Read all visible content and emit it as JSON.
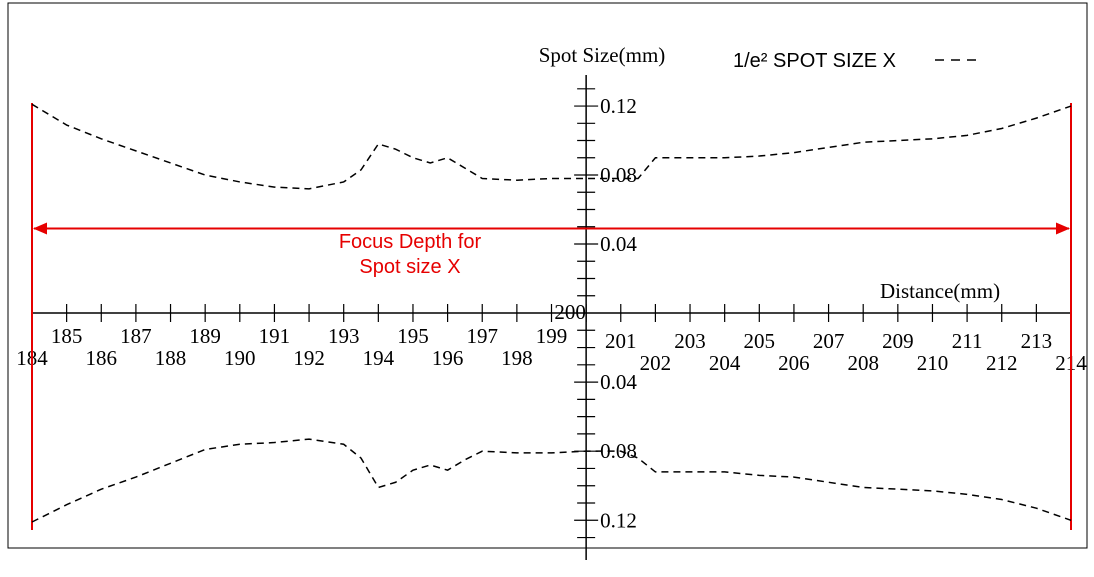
{
  "chart_data": {
    "type": "line",
    "x_label": "Distance(mm)",
    "y_label": "Spot Size(mm)",
    "xlim": [
      184,
      214
    ],
    "xticks": [
      184,
      185,
      186,
      187,
      188,
      189,
      190,
      191,
      192,
      193,
      194,
      195,
      196,
      197,
      198,
      199,
      200,
      201,
      202,
      203,
      204,
      205,
      206,
      207,
      208,
      209,
      210,
      211,
      212,
      213,
      214
    ],
    "ylim": [
      0,
      0.138
    ],
    "yticks": [
      0.04,
      0.08,
      0.12
    ],
    "y2lim": [
      0,
      0.143
    ],
    "y2ticks": [
      0.04,
      0.08,
      0.12
    ],
    "yminor_ticks": [
      0.01,
      0.02,
      0.03,
      0.05,
      0.06,
      0.07,
      0.09,
      0.1,
      0.11,
      0.13
    ],
    "x": [
      184,
      185,
      186,
      187,
      188,
      189,
      190,
      191,
      192,
      193,
      193.5,
      194,
      194.5,
      195,
      195.5,
      196,
      196.5,
      197,
      198,
      199,
      200,
      201,
      201.5,
      202,
      203,
      204,
      205,
      206,
      207,
      208,
      209,
      210,
      211,
      212,
      213,
      214
    ],
    "series": [
      {
        "name": "1/e² SPOT SIZE X",
        "color": "#000000",
        "values": [
          0.121,
          0.109,
          0.101,
          0.094,
          0.087,
          0.08,
          0.076,
          0.073,
          0.072,
          0.076,
          0.083,
          0.098,
          0.095,
          0.09,
          0.087,
          0.09,
          0.084,
          0.078,
          0.077,
          0.078,
          0.078,
          0.078,
          0.078,
          0.09,
          0.09,
          0.09,
          0.091,
          0.093,
          0.096,
          0.099,
          0.1,
          0.101,
          0.103,
          0.107,
          0.113,
          0.12
        ]
      },
      {
        "color": "#000000",
        "axis": "y2",
        "values": [
          0.121,
          0.111,
          0.102,
          0.095,
          0.087,
          0.079,
          0.076,
          0.075,
          0.073,
          0.076,
          0.084,
          0.101,
          0.098,
          0.091,
          0.088,
          0.091,
          0.085,
          0.08,
          0.081,
          0.081,
          0.08,
          0.08,
          0.084,
          0.092,
          0.092,
          0.092,
          0.094,
          0.095,
          0.098,
          0.101,
          0.102,
          0.103,
          0.105,
          0.108,
          0.113,
          0.12
        ]
      }
    ],
    "focus_range": [
      184,
      214
    ],
    "focus_color": "#e60000",
    "annotation": [
      "Focus Depth for",
      "Spot size X"
    ]
  }
}
